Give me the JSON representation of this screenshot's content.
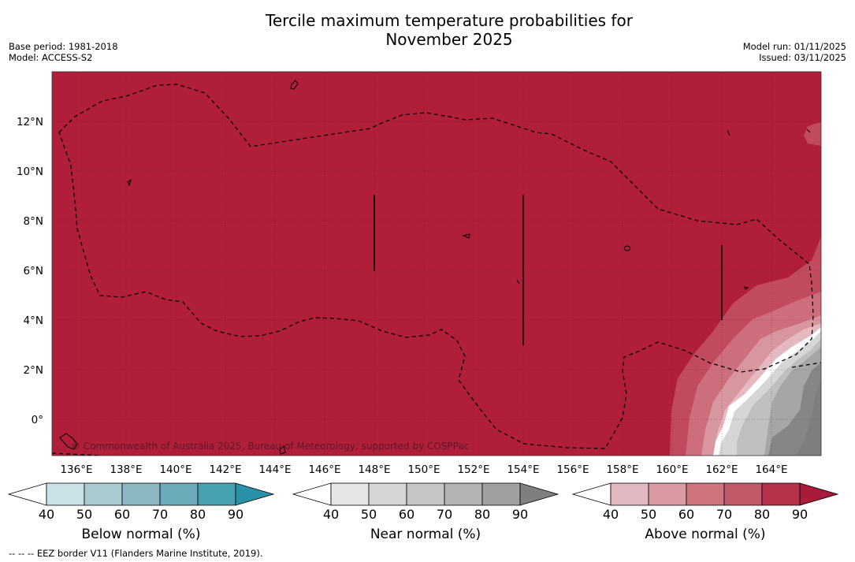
{
  "title_line1": "Tercile maximum temperature probabilities for",
  "title_line2": "November 2025",
  "base_period": "Base period: 1981-2018",
  "model": "Model: ACCESS-S2",
  "model_run": "Model run: 01/11/2025",
  "issued": "Issued: 03/11/2025",
  "copyright": "© Commonwealth of Australia 2025, Bureau of Meteorology, supported by COSPPac",
  "footer": "--  --  -- EEZ border V11 (Flanders Marine Institute, 2019).",
  "map": {
    "lon_labels": [
      "136°E",
      "138°E",
      "140°E",
      "142°E",
      "144°E",
      "146°E",
      "148°E",
      "150°E",
      "152°E",
      "154°E",
      "156°E",
      "158°E",
      "160°E",
      "162°E",
      "164°E"
    ],
    "lat_labels": [
      "12°N",
      "10°N",
      "8°N",
      "6°N",
      "4°N",
      "2°N",
      "0°"
    ],
    "dominant_category": "Above normal 80-90%",
    "background_color": "#b01e3a"
  },
  "colorbars": [
    {
      "label": "Below normal (%)",
      "ticks": [
        "40",
        "50",
        "60",
        "70",
        "80",
        "90"
      ],
      "colors": [
        "#ffffff",
        "#c9e2e8",
        "#a8cad0",
        "#8ab7c2",
        "#6aaab9",
        "#47a1b2",
        "#2a92a8"
      ]
    },
    {
      "label": "Near normal (%)",
      "ticks": [
        "40",
        "50",
        "60",
        "70",
        "80",
        "90"
      ],
      "colors": [
        "#ffffff",
        "#e6e6e6",
        "#d6d6d6",
        "#c6c6c6",
        "#b4b4b4",
        "#a0a0a0",
        "#7f7f7f"
      ]
    },
    {
      "label": "Above normal (%)",
      "ticks": [
        "40",
        "50",
        "60",
        "70",
        "80",
        "90"
      ],
      "colors": [
        "#ffffff",
        "#e2b9c0",
        "#d99aa3",
        "#cd747f",
        "#c05a68",
        "#b5324a",
        "#a61c39"
      ]
    }
  ]
}
